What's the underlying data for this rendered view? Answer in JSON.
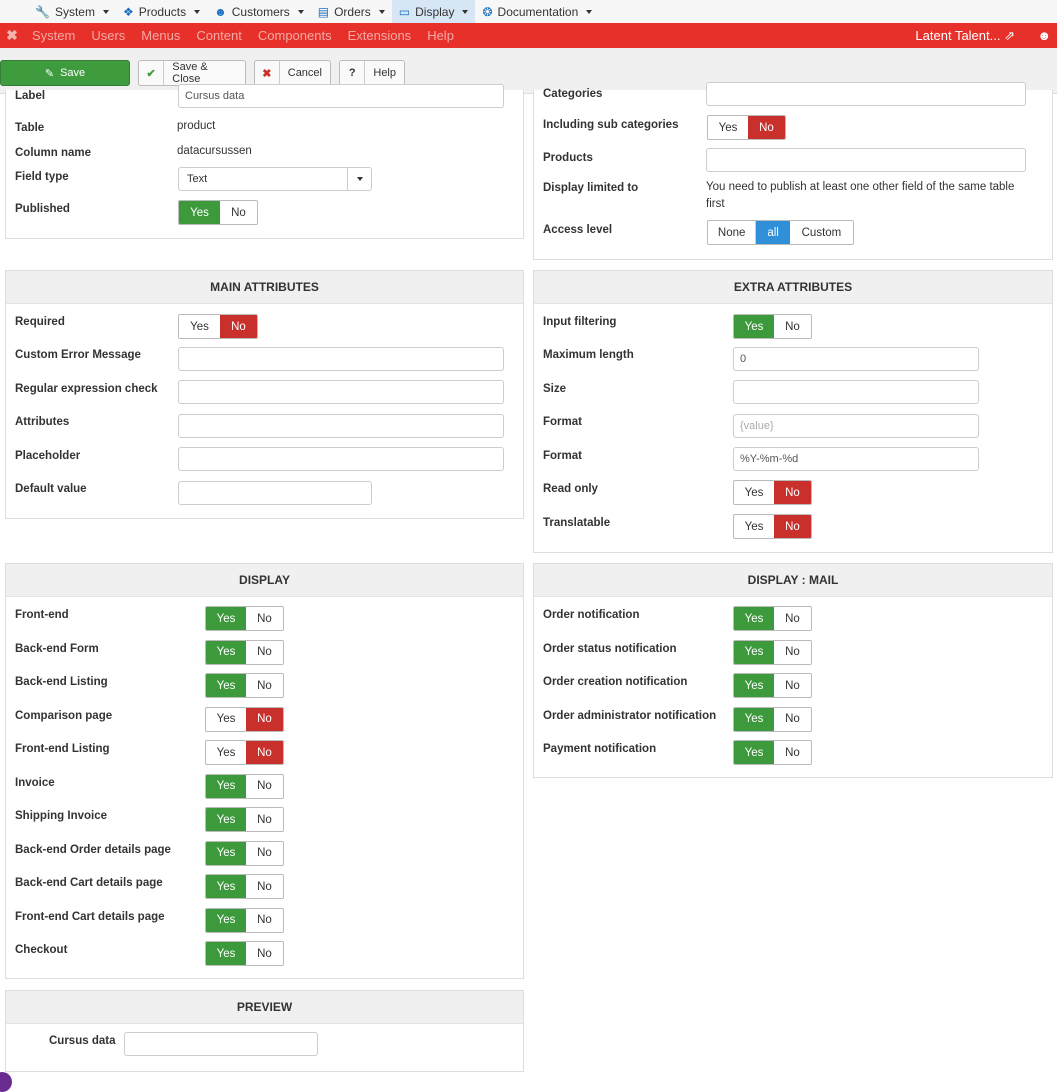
{
  "topmenu": {
    "items": [
      {
        "label": "System",
        "icon": "wrench-icon"
      },
      {
        "label": "Products",
        "icon": "cubes-icon"
      },
      {
        "label": "Customers",
        "icon": "user-icon"
      },
      {
        "label": "Orders",
        "icon": "credit-card-icon"
      },
      {
        "label": "Display",
        "icon": "monitor-icon"
      },
      {
        "label": "Documentation",
        "icon": "lifebuoy-icon"
      }
    ]
  },
  "adminbar": {
    "items": [
      "System",
      "Users",
      "Menus",
      "Content",
      "Components",
      "Extensions",
      "Help"
    ],
    "site_name": "Latent Talent...",
    "accent": "#e7302a"
  },
  "toolbar": {
    "save": "Save",
    "save_close": "Save & Close",
    "cancel": "Cancel",
    "help": "Help"
  },
  "general_left": {
    "label_label": "Label",
    "label_value": "Cursus data",
    "table_label": "Table",
    "table_value": "product",
    "column_label": "Column name",
    "column_value": "datacursussen",
    "fieldtype_label": "Field type",
    "fieldtype_value": "Text",
    "published_label": "Published"
  },
  "general_right": {
    "categories_label": "Categories",
    "subcat_label": "Including sub categories",
    "products_label": "Products",
    "limited_label": "Display limited to",
    "limited_text": "You need to publish at least one other field of the same table first",
    "access_label": "Access level",
    "access_options": [
      "None",
      "all",
      "Custom"
    ]
  },
  "yes": "Yes",
  "no": "No",
  "main_attributes": {
    "title": "MAIN ATTRIBUTES",
    "required": "Required",
    "custom_error": "Custom Error Message",
    "regex": "Regular expression check",
    "attributes": "Attributes",
    "placeholder": "Placeholder",
    "default_value": "Default value"
  },
  "extra_attributes": {
    "title": "EXTRA ATTRIBUTES",
    "input_filtering": "Input filtering",
    "max_length": "Maximum length",
    "max_length_value": "0",
    "size": "Size",
    "format1": "Format",
    "format1_placeholder": "{value}",
    "format2": "Format",
    "format2_value": "%Y-%m-%d",
    "read_only": "Read only",
    "translatable": "Translatable"
  },
  "display": {
    "title": "DISPLAY",
    "rows": [
      {
        "label": "Front-end",
        "state": "yes"
      },
      {
        "label": "Back-end Form",
        "state": "yes"
      },
      {
        "label": "Back-end Listing",
        "state": "yes"
      },
      {
        "label": "Comparison page",
        "state": "no"
      },
      {
        "label": "Front-end Listing",
        "state": "no"
      },
      {
        "label": "Invoice",
        "state": "yes"
      },
      {
        "label": "Shipping Invoice",
        "state": "yes"
      },
      {
        "label": "Back-end Order details page",
        "state": "yes"
      },
      {
        "label": "Back-end Cart details page",
        "state": "yes"
      },
      {
        "label": "Front-end Cart details page",
        "state": "yes"
      },
      {
        "label": "Checkout",
        "state": "yes"
      }
    ]
  },
  "display_mail": {
    "title": "DISPLAY : MAIL",
    "rows": [
      {
        "label": "Order notification",
        "state": "yes"
      },
      {
        "label": "Order status notification",
        "state": "yes"
      },
      {
        "label": "Order creation notification",
        "state": "yes"
      },
      {
        "label": "Order administrator notification",
        "state": "yes"
      },
      {
        "label": "Payment notification",
        "state": "yes"
      }
    ]
  },
  "preview": {
    "title": "PREVIEW",
    "field_label": "Cursus data"
  }
}
